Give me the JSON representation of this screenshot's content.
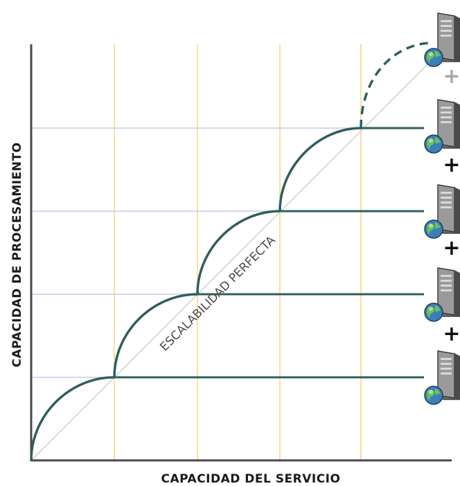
{
  "diagram": {
    "xlabel": "CAPACIDAD DEL SERVICIO",
    "ylabel": "CAPACIDAD DE PROCESAMIENTO",
    "diagonal_label": "ESCALABILIDAD PERFECTA",
    "servers": [
      {
        "name": "server-1",
        "projected": false
      },
      {
        "name": "server-2",
        "projected": false
      },
      {
        "name": "server-3",
        "projected": false
      },
      {
        "name": "server-4",
        "projected": false
      },
      {
        "name": "server-5",
        "projected": true
      }
    ],
    "plus_signs": [
      {
        "symbol": "+",
        "projected": false
      },
      {
        "symbol": "+",
        "projected": false
      },
      {
        "symbol": "+",
        "projected": false
      },
      {
        "symbol": "+",
        "projected": true
      }
    ],
    "colors": {
      "axis": "#4a4a4a",
      "curve": "#2f5e5e",
      "vertical_gridline": "#f5d580",
      "horizontal_gridline": "#c9c9ea",
      "diagonal": "#cfcfcf",
      "plus": "#111111",
      "plus_projected": "#a9a9a9"
    }
  }
}
